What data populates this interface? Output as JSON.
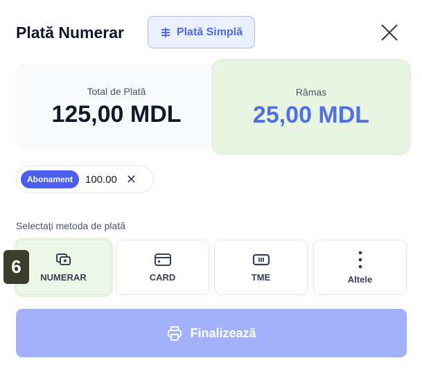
{
  "header": {
    "title": "Plată Numerar",
    "mode_button": "Plată Simplă",
    "close_icon": "close-icon"
  },
  "summary": {
    "total_label": "Total de Plată",
    "total_value": "125,00 MDL",
    "remaining_label": "Rămas",
    "remaining_value": "25,00 MDL",
    "remaining_color": "#4e70e4"
  },
  "applied": {
    "tag": "Abonament",
    "value": "100.00"
  },
  "methods": {
    "label": "Selectați metoda de plată",
    "items": [
      {
        "label": "NUMERAR",
        "icon": "cash-icon",
        "selected": true
      },
      {
        "label": "CARD",
        "icon": "card-icon"
      },
      {
        "label": "TME",
        "icon": "terminal-icon"
      },
      {
        "label": "Altele",
        "icon": "more-vertical-icon"
      }
    ]
  },
  "badge": "6",
  "finish_button": "Finalizează"
}
